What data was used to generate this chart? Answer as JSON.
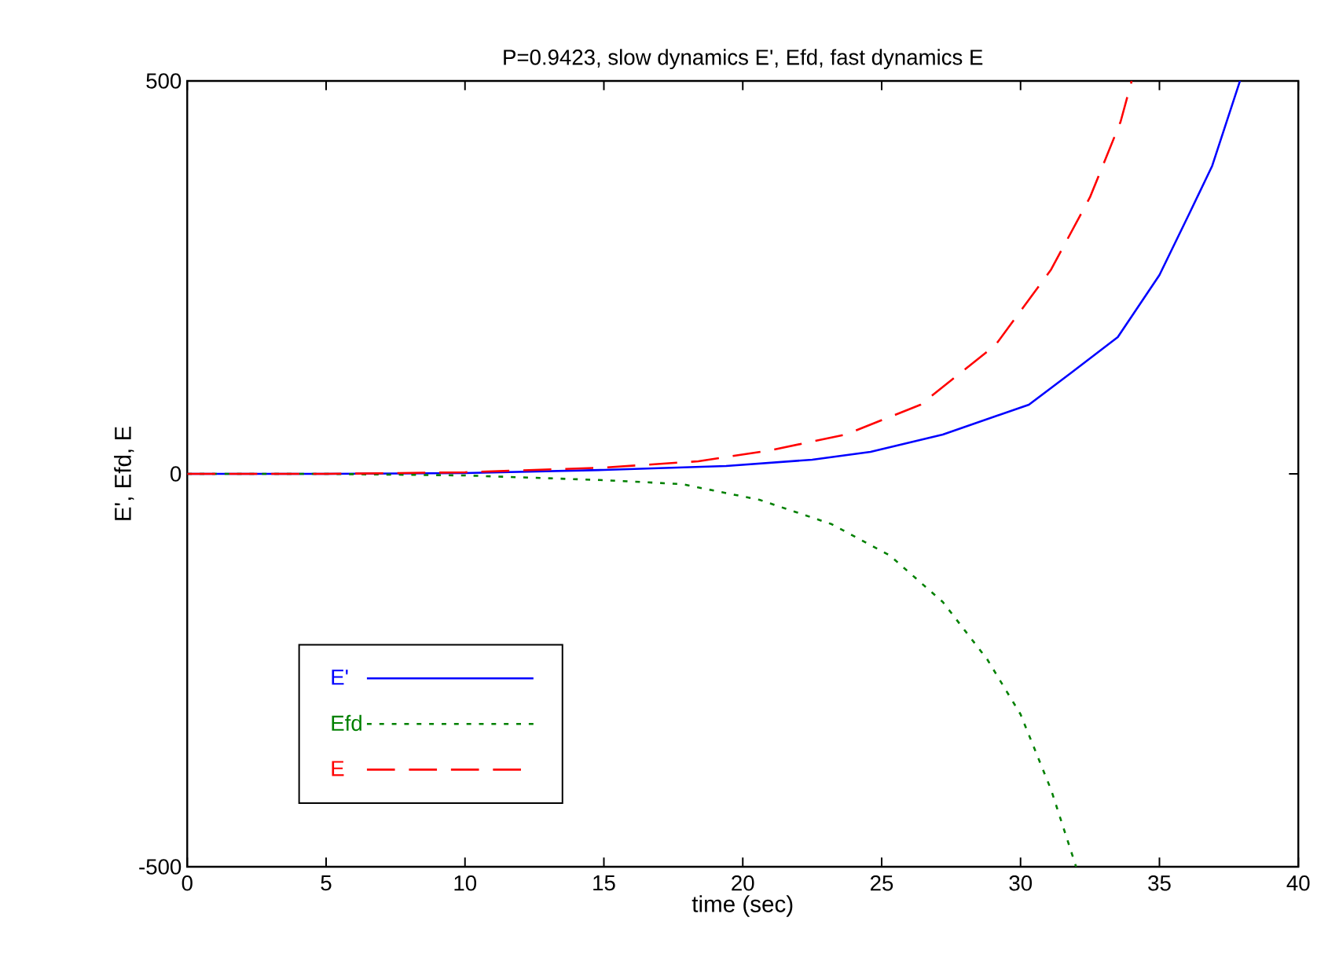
{
  "chart_data": {
    "type": "line",
    "title": "P=0.9423, slow dynamics E', Efd, fast dynamics E",
    "xlabel": "time (sec)",
    "ylabel": "E', Efd, E",
    "xlim": [
      0,
      40
    ],
    "ylim": [
      -500,
      500
    ],
    "xticks": [
      0,
      5,
      10,
      15,
      20,
      25,
      30,
      35,
      40
    ],
    "yticks": [
      -500,
      0,
      500
    ],
    "grid": false,
    "legend": "bottom left",
    "series": [
      {
        "name": "E'",
        "color": "#0000ff",
        "line_style": "solid",
        "x": [
          0,
          5,
          10,
          15,
          19.4,
          22.5,
          24.6,
          27.2,
          30.3,
          31.8,
          33.5,
          35.0,
          36.1,
          36.9,
          37.9
        ],
        "values": [
          0,
          0,
          1,
          5,
          10,
          18,
          28,
          50,
          88,
          128,
          174,
          253,
          333,
          392,
          500
        ]
      },
      {
        "name": "Efd",
        "color": "#008000",
        "line_style": "dotted",
        "x": [
          0,
          5,
          10,
          15,
          17.8,
          20.6,
          23.2,
          25.3,
          27.2,
          28.8,
          30.0,
          31.1,
          32.0
        ],
        "values": [
          0,
          0,
          -2,
          -8,
          -13,
          -33,
          -64,
          -104,
          -163,
          -236,
          -306,
          -402,
          -500
        ]
      },
      {
        "name": "E",
        "color": "#ff0000",
        "line_style": "dashed",
        "x": [
          0,
          5,
          10,
          15,
          18.4,
          21.0,
          23.7,
          26.4,
          29.1,
          31.1,
          32.5,
          33.6,
          34.0
        ],
        "values": [
          0,
          0,
          2,
          8,
          16,
          30,
          50,
          88,
          164,
          260,
          352,
          448,
          500
        ]
      }
    ]
  }
}
